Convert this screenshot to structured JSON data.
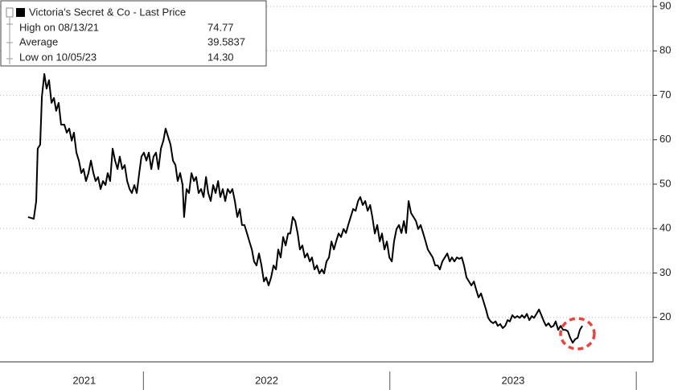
{
  "chart_data": {
    "type": "line",
    "legend": {
      "title": "Victoria's Secret & Co - Last Price",
      "rows": [
        {
          "label": "High on 08/13/21",
          "value": "74.77"
        },
        {
          "label": "Average",
          "value": "39.5837"
        },
        {
          "label": "Low on 10/05/23",
          "value": "14.30"
        }
      ]
    },
    "xlim": [
      2021.418,
      2024.068
    ],
    "xticks": [
      {
        "value": 2021.76,
        "label": "2021"
      },
      {
        "value": 2022.5,
        "label": "2022"
      },
      {
        "value": 2023.5,
        "label": "2023"
      }
    ],
    "ylim": [
      10,
      91
    ],
    "yticks": [
      20,
      30,
      40,
      50,
      60,
      70,
      80,
      90
    ],
    "grid": true,
    "series": [
      {
        "name": "Victoria's Secret & Co - Last Price",
        "color": "#000000",
        "x": [
          2021.532,
          2021.555,
          2021.565,
          2021.571,
          2021.581,
          2021.588,
          2021.598,
          2021.607,
          2021.617,
          2021.627,
          2021.637,
          2021.646,
          2021.656,
          2021.666,
          2021.679,
          2021.689,
          2021.699,
          2021.709,
          2021.718,
          2021.728,
          2021.738,
          2021.748,
          2021.757,
          2021.767,
          2021.777,
          2021.787,
          2021.797,
          2021.806,
          2021.816,
          2021.826,
          2021.836,
          2021.846,
          2021.855,
          2021.865,
          2021.875,
          2021.885,
          2021.895,
          2021.904,
          2021.914,
          2021.924,
          2021.934,
          2021.944,
          2021.953,
          2021.963,
          2021.973,
          2021.983,
          2021.992,
          2022.002,
          2022.012,
          2022.022,
          2022.032,
          2022.041,
          2022.051,
          2022.061,
          2022.071,
          2022.081,
          2022.09,
          2022.1,
          2022.11,
          2022.12,
          2022.13,
          2022.139,
          2022.149,
          2022.159,
          2022.165,
          2022.175,
          2022.185,
          2022.195,
          2022.205,
          2022.214,
          2022.224,
          2022.234,
          2022.244,
          2022.254,
          2022.263,
          2022.273,
          2022.283,
          2022.293,
          2022.303,
          2022.312,
          2022.322,
          2022.332,
          2022.342,
          2022.352,
          2022.361,
          2022.371,
          2022.381,
          2022.391,
          2022.4,
          2022.41,
          2022.42,
          2022.43,
          2022.44,
          2022.449,
          2022.459,
          2022.469,
          2022.479,
          2022.489,
          2022.498,
          2022.508,
          2022.518,
          2022.528,
          2022.538,
          2022.547,
          2022.557,
          2022.567,
          2022.577,
          2022.587,
          2022.596,
          2022.606,
          2022.616,
          2022.626,
          2022.635,
          2022.645,
          2022.655,
          2022.665,
          2022.675,
          2022.684,
          2022.694,
          2022.704,
          2022.714,
          2022.724,
          2022.733,
          2022.743,
          2022.753,
          2022.763,
          2022.773,
          2022.782,
          2022.792,
          2022.802,
          2022.812,
          2022.822,
          2022.831,
          2022.841,
          2022.851,
          2022.861,
          2022.871,
          2022.88,
          2022.89,
          2022.9,
          2022.91,
          2022.92,
          2022.929,
          2022.939,
          2022.949,
          2022.959,
          2022.968,
          2022.978,
          2022.988,
          2022.998,
          2023.008,
          2023.017,
          2023.027,
          2023.037,
          2023.047,
          2023.057,
          2023.066,
          2023.076,
          2023.086,
          2023.096,
          2023.106,
          2023.115,
          2023.125,
          2023.135,
          2023.145,
          2023.154,
          2023.164,
          2023.174,
          2023.184,
          2023.194,
          2023.203,
          2023.213,
          2023.223,
          2023.233,
          2023.243,
          2023.252,
          2023.262,
          2023.272,
          2023.282,
          2023.292,
          2023.301,
          2023.311,
          2023.321,
          2023.331,
          2023.341,
          2023.35,
          2023.36,
          2023.37,
          2023.38,
          2023.39,
          2023.399,
          2023.409,
          2023.419,
          2023.429,
          2023.438,
          2023.448,
          2023.458,
          2023.468,
          2023.478,
          2023.487,
          2023.497,
          2023.507,
          2023.517,
          2023.527,
          2023.536,
          2023.546,
          2023.556,
          2023.566,
          2023.576,
          2023.585,
          2023.595,
          2023.605,
          2023.615,
          2023.625,
          2023.634,
          2023.644,
          2023.654,
          2023.664,
          2023.673,
          2023.683,
          2023.693,
          2023.703,
          2023.713,
          2023.722,
          2023.732,
          2023.742,
          2023.752,
          2023.762,
          2023.771,
          2023.781
        ],
        "values": [
          42.6,
          42.2,
          46.2,
          58.0,
          58.9,
          69.7,
          74.8,
          71.5,
          73.4,
          68.3,
          69.4,
          66.5,
          68.3,
          63.4,
          63.4,
          61.6,
          62.5,
          59.8,
          61.6,
          57.1,
          55.3,
          52.5,
          53.4,
          50.7,
          52.5,
          55.3,
          52.5,
          50.7,
          51.6,
          48.9,
          50.7,
          49.8,
          52.5,
          50.7,
          58.0,
          55.3,
          53.4,
          56.2,
          53.4,
          54.3,
          50.7,
          48.9,
          48.0,
          49.8,
          48.0,
          52.5,
          56.2,
          57.1,
          55.3,
          57.1,
          53.4,
          56.2,
          57.1,
          53.4,
          58.0,
          59.8,
          62.5,
          60.7,
          58.9,
          55.3,
          54.3,
          50.7,
          52.5,
          49.8,
          42.6,
          48.9,
          48.0,
          52.5,
          50.7,
          51.6,
          48.0,
          48.9,
          47.1,
          51.6,
          48.0,
          46.2,
          49.8,
          48.0,
          50.7,
          47.1,
          48.9,
          46.2,
          48.9,
          48.0,
          48.9,
          46.2,
          42.6,
          44.4,
          40.8,
          40.8,
          39.0,
          37.1,
          35.3,
          32.6,
          31.7,
          34.4,
          31.7,
          28.1,
          29.0,
          27.2,
          29.0,
          31.7,
          30.8,
          35.3,
          33.5,
          38.1,
          36.2,
          38.9,
          38.9,
          42.6,
          41.7,
          38.9,
          35.3,
          36.2,
          33.5,
          34.4,
          32.6,
          33.5,
          30.8,
          31.7,
          29.9,
          30.8,
          29.9,
          32.6,
          33.5,
          37.1,
          35.3,
          37.1,
          38.9,
          38.1,
          39.9,
          39.0,
          40.8,
          42.6,
          44.4,
          44.0,
          46.2,
          47.1,
          45.3,
          46.2,
          44.0,
          45.3,
          42.6,
          38.9,
          40.8,
          37.1,
          38.9,
          35.3,
          37.1,
          33.5,
          32.6,
          37.1,
          39.9,
          40.8,
          39.0,
          41.7,
          39.0,
          46.2,
          43.5,
          42.6,
          41.7,
          39.9,
          40.8,
          39.0,
          37.1,
          35.3,
          34.4,
          33.5,
          31.7,
          31.7,
          30.8,
          32.6,
          33.5,
          34.4,
          32.6,
          33.5,
          32.6,
          33.5,
          33.2,
          33.5,
          31.7,
          29.0,
          28.1,
          27.2,
          28.1,
          26.3,
          24.5,
          25.4,
          23.6,
          21.8,
          19.9,
          19.1,
          18.7,
          19.1,
          18.1,
          18.5,
          17.6,
          18.1,
          19.4,
          19.1,
          20.5,
          19.9,
          20.3,
          19.9,
          20.5,
          19.9,
          20.8,
          19.4,
          20.3,
          19.9,
          20.8,
          21.8,
          20.5,
          19.1,
          18.1,
          18.7,
          17.8,
          18.1,
          19.1,
          17.2,
          18.1,
          17.2,
          17.2,
          16.9,
          15.4,
          14.3,
          15.1,
          15.4,
          17.2,
          18.1
        ]
      }
    ]
  }
}
